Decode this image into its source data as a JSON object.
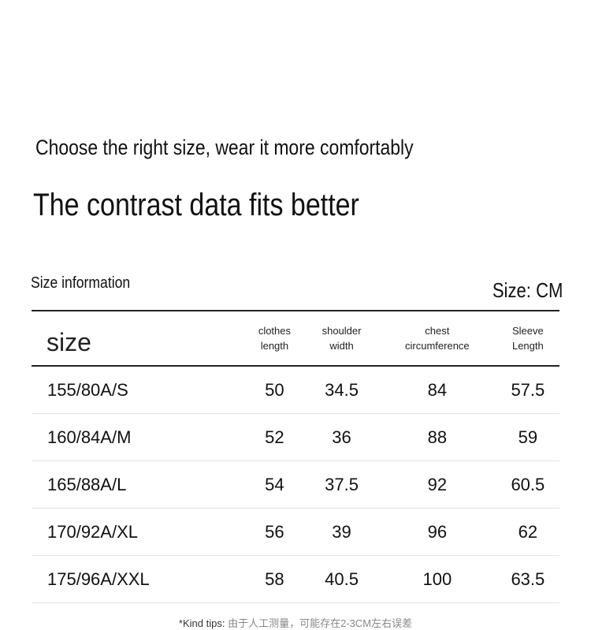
{
  "header": {
    "tagline": "Choose the right size, wear it more comfortably",
    "title": "The contrast data fits better"
  },
  "table": {
    "caption": "Size information",
    "unit": "Size: CM",
    "columns": [
      [
        "size"
      ],
      [
        "clothes",
        "length"
      ],
      [
        "shoulder",
        "width"
      ],
      [
        "chest",
        "circumference"
      ],
      [
        "Sleeve",
        "Length"
      ]
    ],
    "rows": [
      [
        "155/80A/S",
        50,
        34.5,
        84,
        57.5
      ],
      [
        "160/84A/M",
        52,
        36,
        88,
        59
      ],
      [
        "165/88A/L",
        54,
        37.5,
        92,
        60.5
      ],
      [
        "170/92A/XL",
        56,
        39,
        96,
        62
      ],
      [
        "175/96A/XXL",
        58,
        40.5,
        100,
        63.5
      ]
    ]
  },
  "footer": {
    "label": "*Kind tips:",
    "text": "由于人工测量，可能存在2-3CM左右误差"
  }
}
